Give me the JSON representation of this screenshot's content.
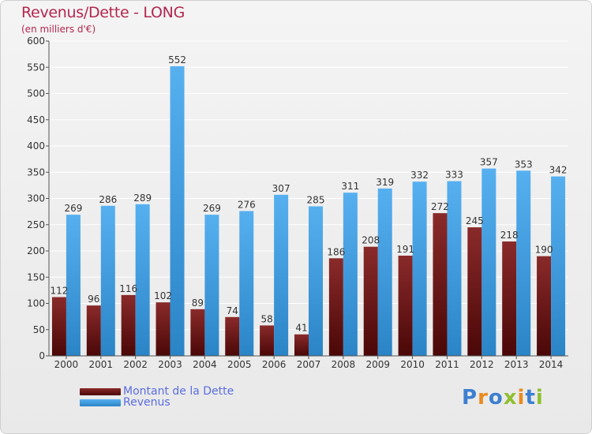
{
  "chart_data": {
    "type": "bar",
    "title": "Revenus/Dette - LONG",
    "subtitle": "(en milliers d'€)",
    "categories": [
      "2000",
      "2001",
      "2002",
      "2003",
      "2004",
      "2005",
      "2006",
      "2007",
      "2008",
      "2009",
      "2010",
      "2011",
      "2012",
      "2013",
      "2014"
    ],
    "series": [
      {
        "name": "Montant de la Dette",
        "color": "#7a1a1a",
        "values": [
          112,
          96,
          116,
          102,
          89,
          74,
          58,
          41,
          186,
          208,
          191,
          272,
          245,
          218,
          190
        ]
      },
      {
        "name": "Revenus",
        "color": "#3d9be4",
        "values": [
          269,
          286,
          289,
          552,
          269,
          276,
          307,
          285,
          311,
          319,
          332,
          333,
          357,
          353,
          342
        ]
      }
    ],
    "ylim": [
      0,
      600
    ],
    "yticks": [
      0,
      50,
      100,
      150,
      200,
      250,
      300,
      350,
      400,
      450,
      500,
      550,
      600
    ],
    "grid": true,
    "legend_position": "bottom-left"
  },
  "brand": {
    "text": "Proxiti",
    "colors": [
      "#3d7fd0",
      "#e98a1f",
      "#3d7fd0",
      "#8fbf2f",
      "#e98a1f",
      "#3d7fd0",
      "#8fbf2f"
    ]
  }
}
